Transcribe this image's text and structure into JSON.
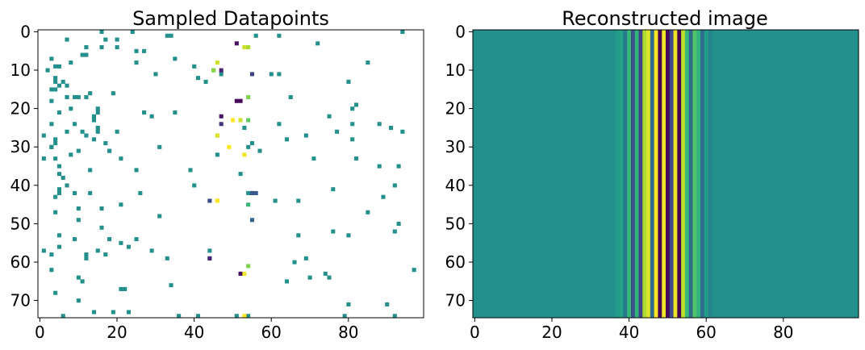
{
  "chart_data": [
    {
      "type": "heatmap",
      "title": "Sampled Datapoints",
      "colormap": "viridis",
      "vmin": -1,
      "vmax": 1,
      "background": "#ffffff",
      "xlim": [
        -0.5,
        99.5
      ],
      "ylim": [
        74.5,
        -0.5
      ],
      "xticks": [
        0,
        20,
        40,
        60,
        80
      ],
      "yticks": [
        0,
        10,
        20,
        30,
        40,
        50,
        60,
        70
      ],
      "points": [
        [
          2,
          7
        ],
        [
          16,
          13
        ],
        [
          20,
          15
        ],
        [
          23,
          14
        ],
        [
          27,
          12
        ],
        [
          17,
          12
        ],
        [
          24,
          3
        ],
        [
          6,
          12
        ],
        [
          7,
          3
        ],
        [
          2,
          17
        ],
        [
          9,
          40
        ],
        [
          12,
          41
        ],
        [
          13,
          43
        ],
        [
          21,
          5
        ],
        [
          30,
          3
        ],
        [
          18,
          3
        ],
        [
          13,
          4
        ],
        [
          13,
          6
        ],
        [
          17,
          7
        ],
        [
          24,
          9
        ],
        [
          0,
          16
        ],
        [
          0,
          24
        ],
        [
          5,
          27
        ],
        [
          11,
          30
        ],
        [
          11,
          47
        ],
        [
          1,
          62
        ],
        [
          3,
          72
        ],
        [
          4,
          16
        ],
        [
          9,
          4
        ],
        [
          15,
          4
        ],
        [
          21,
          35
        ],
        [
          22,
          29
        ],
        [
          28,
          14
        ],
        [
          29,
          4
        ],
        [
          26,
          20
        ],
        [
          29,
          17
        ],
        [
          31,
          18
        ],
        [
          33,
          1
        ],
        [
          40,
          7
        ],
        [
          10,
          2
        ],
        [
          26,
          7
        ],
        [
          24,
          62
        ],
        [
          42,
          5
        ],
        [
          46,
          10
        ],
        [
          49,
          10
        ],
        [
          53,
          5
        ],
        [
          54,
          9
        ],
        [
          57,
          44
        ],
        [
          58,
          12
        ],
        [
          59,
          12
        ],
        [
          64,
          10
        ],
        [
          65,
          11
        ],
        [
          70,
          10
        ],
        [
          73,
          14
        ],
        [
          62,
          3
        ],
        [
          73,
          19
        ],
        [
          73,
          23
        ],
        [
          74,
          6
        ],
        [
          74,
          36
        ],
        [
          74,
          41
        ],
        [
          74,
          51
        ],
        [
          74,
          54
        ],
        [
          74,
          79
        ],
        [
          74,
          92
        ],
        [
          71,
          80
        ],
        [
          71,
          90
        ],
        [
          68,
          4
        ],
        [
          67,
          21
        ],
        [
          67,
          22
        ],
        [
          66,
          34
        ],
        [
          65,
          64
        ],
        [
          64,
          70
        ],
        [
          64,
          75
        ],
        [
          63,
          74
        ],
        [
          62,
          97
        ],
        [
          60,
          66
        ],
        [
          59,
          69
        ],
        [
          59,
          33
        ],
        [
          59,
          44
        ],
        [
          58,
          3
        ],
        [
          58,
          17
        ],
        [
          57,
          1
        ],
        [
          57,
          15
        ],
        [
          57,
          29
        ],
        [
          56,
          5
        ],
        [
          56,
          23
        ],
        [
          55,
          21
        ],
        [
          54,
          25
        ],
        [
          54,
          18
        ],
        [
          53,
          67
        ],
        [
          52,
          76
        ],
        [
          53,
          80
        ],
        [
          52,
          92
        ],
        [
          51,
          16
        ],
        [
          50,
          93
        ],
        [
          48,
          31
        ],
        [
          47,
          4
        ],
        [
          47,
          85
        ],
        [
          46,
          16
        ],
        [
          45,
          21
        ],
        [
          44,
          46
        ],
        [
          44,
          61
        ],
        [
          44,
          67
        ],
        [
          43,
          4
        ],
        [
          43,
          89
        ],
        [
          42,
          9
        ],
        [
          42,
          13
        ],
        [
          42,
          26
        ],
        [
          42,
          54
        ],
        [
          42,
          55
        ],
        [
          41,
          5
        ],
        [
          41,
          76
        ],
        [
          40,
          40
        ],
        [
          40,
          92
        ],
        [
          38,
          6
        ],
        [
          37,
          5
        ],
        [
          37,
          52
        ],
        [
          36,
          13
        ],
        [
          36,
          25
        ],
        [
          36,
          39
        ],
        [
          35,
          5
        ],
        [
          35,
          88
        ],
        [
          35,
          93
        ],
        [
          33,
          4
        ],
        [
          33,
          21
        ],
        [
          33,
          71
        ],
        [
          32,
          8
        ],
        [
          32,
          46
        ],
        [
          31,
          10
        ],
        [
          31,
          18
        ],
        [
          31,
          57
        ],
        [
          30,
          3
        ],
        [
          30,
          31
        ],
        [
          30,
          54
        ],
        [
          29,
          55
        ],
        [
          28,
          4
        ],
        [
          28,
          64
        ],
        [
          28,
          81
        ],
        [
          27,
          1
        ],
        [
          27,
          46
        ],
        [
          27,
          69
        ],
        [
          26,
          11
        ],
        [
          26,
          15
        ],
        [
          26,
          77
        ],
        [
          26,
          94
        ],
        [
          25,
          15
        ],
        [
          25,
          53
        ],
        [
          25,
          91
        ],
        [
          24,
          81
        ],
        [
          24,
          88
        ],
        [
          22,
          14
        ],
        [
          22,
          75
        ],
        [
          21,
          15
        ],
        [
          21,
          27
        ],
        [
          20,
          8
        ],
        [
          20,
          81
        ],
        [
          19,
          82
        ],
        [
          17,
          10
        ],
        [
          17,
          65
        ],
        [
          17,
          9
        ],
        [
          16,
          19
        ],
        [
          15,
          3
        ],
        [
          14,
          5
        ],
        [
          14,
          7
        ],
        [
          13,
          80
        ],
        [
          12,
          4
        ],
        [
          10,
          45
        ],
        [
          9,
          5
        ],
        [
          8,
          8
        ],
        [
          8,
          25
        ],
        [
          8,
          85
        ],
        [
          7,
          35
        ],
        [
          6,
          11
        ],
        [
          5,
          25
        ],
        [
          4,
          20
        ],
        [
          4,
          12
        ],
        [
          2,
          20
        ],
        [
          0,
          94
        ],
        [
          1,
          56
        ],
        [
          1,
          33
        ],
        [
          1,
          34
        ],
        [
          33,
          82
        ],
        [
          11,
          60
        ],
        [
          11,
          62
        ]
      ],
      "highlight_points": [
        {
          "row": 3,
          "col": 51,
          "value": -0.9
        },
        {
          "row": 4,
          "col": 53,
          "value": 0.85
        },
        {
          "row": 4,
          "col": 54,
          "value": 0.75
        },
        {
          "row": 8,
          "col": 46,
          "value": 0.85
        },
        {
          "row": 10,
          "col": 45,
          "value": 0.65
        },
        {
          "row": 10,
          "col": 47,
          "value": -0.8
        },
        {
          "row": 11,
          "col": 55,
          "value": -0.6
        },
        {
          "row": 18,
          "col": 51,
          "value": -0.95
        },
        {
          "row": 18,
          "col": 52,
          "value": -0.95
        },
        {
          "row": 17,
          "col": 54,
          "value": 0.6
        },
        {
          "row": 22,
          "col": 47,
          "value": -0.9
        },
        {
          "row": 23,
          "col": 50,
          "value": 1.0
        },
        {
          "row": 23,
          "col": 52,
          "value": 0.85
        },
        {
          "row": 23,
          "col": 54,
          "value": 0.5
        },
        {
          "row": 24,
          "col": 47,
          "value": -0.7
        },
        {
          "row": 27,
          "col": 46,
          "value": 0.9
        },
        {
          "row": 30,
          "col": 49,
          "value": 1.0
        },
        {
          "row": 32,
          "col": 53,
          "value": 0.95
        },
        {
          "row": 42,
          "col": 55,
          "value": -0.45
        },
        {
          "row": 42,
          "col": 56,
          "value": -0.45
        },
        {
          "row": 44,
          "col": 44,
          "value": -0.55
        },
        {
          "row": 44,
          "col": 46,
          "value": 1.0
        },
        {
          "row": 45,
          "col": 54,
          "value": 0.35
        },
        {
          "row": 49,
          "col": 55,
          "value": -0.35
        },
        {
          "row": 59,
          "col": 44,
          "value": -0.8
        },
        {
          "row": 61,
          "col": 54,
          "value": 0.6
        },
        {
          "row": 63,
          "col": 52,
          "value": -0.95
        },
        {
          "row": 63,
          "col": 53,
          "value": 0.95
        },
        {
          "row": 74,
          "col": 53,
          "value": 1.0
        }
      ]
    },
    {
      "type": "heatmap",
      "title": "Reconstructed image",
      "colormap": "viridis",
      "vmin": -1,
      "vmax": 1,
      "xlim": [
        -0.5,
        99.5
      ],
      "ylim": [
        74.5,
        -0.5
      ],
      "xticks": [
        0,
        20,
        40,
        60,
        80
      ],
      "yticks": [
        0,
        10,
        20,
        30,
        40,
        50,
        60,
        70
      ],
      "column_profile": {
        "default": 0.0,
        "values": {
          "37": 0.1,
          "38": 0.15,
          "39": -0.2,
          "40": 0.35,
          "41": -0.5,
          "42": 0.3,
          "43": -0.6,
          "44": 0.75,
          "45": 0.9,
          "46": -0.3,
          "47": 1.0,
          "48": -1.0,
          "49": 0.95,
          "50": -0.95,
          "51": -0.55,
          "52": 0.95,
          "53": -1.0,
          "54": 0.8,
          "55": 0.35,
          "56": -0.3,
          "57": 0.45,
          "58": 0.3,
          "59": -0.3,
          "60": 0.1,
          "61": -0.1
        }
      }
    }
  ]
}
